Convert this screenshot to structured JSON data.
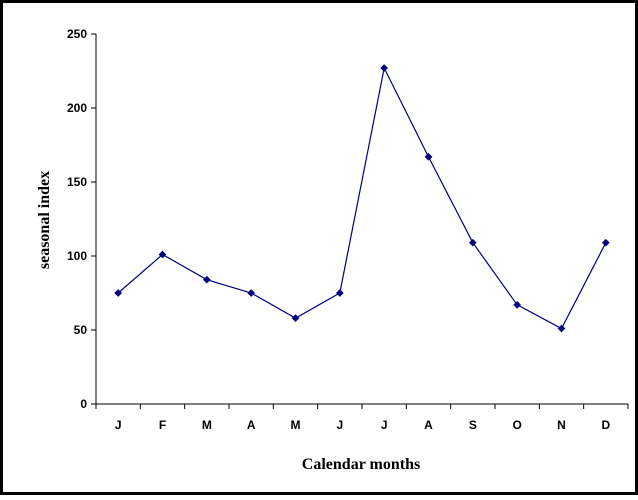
{
  "chart_data": {
    "type": "line",
    "title": "",
    "xlabel": "Calendar months",
    "ylabel": "seasonal index",
    "categories": [
      "J",
      "F",
      "M",
      "A",
      "M",
      "J",
      "J",
      "A",
      "S",
      "O",
      "N",
      "D"
    ],
    "series": [
      {
        "values": [
          75,
          101,
          84,
          75,
          58,
          75,
          227,
          167,
          109,
          67,
          51,
          109
        ],
        "color": "#000080"
      }
    ],
    "ylim": [
      0,
      250
    ],
    "yticks": [
      "0",
      "50",
      "100",
      "150",
      "200",
      "250"
    ],
    "grid": false,
    "legend": "none"
  }
}
